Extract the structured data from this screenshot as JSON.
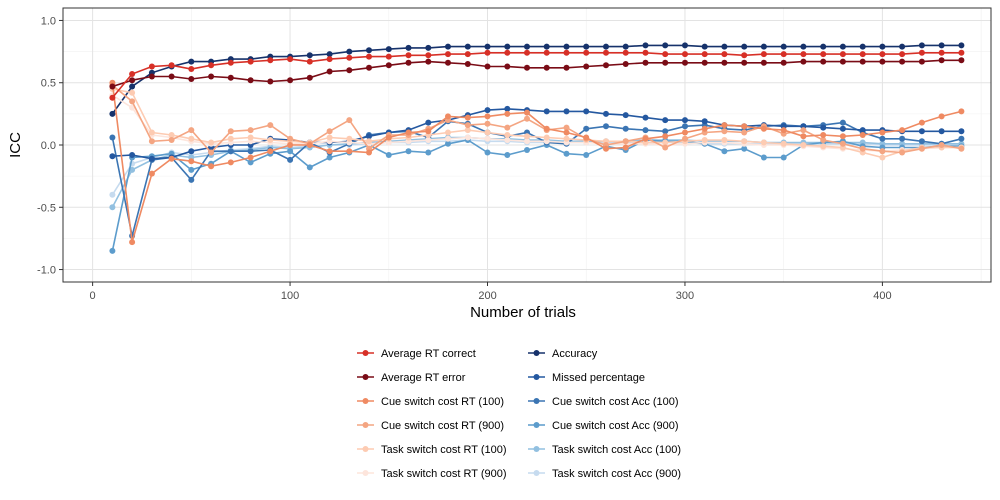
{
  "chart_data": {
    "type": "line",
    "xlabel": "Number of trials",
    "ylabel": "ICC",
    "xlim": [
      -15,
      455
    ],
    "ylim": [
      -1.1,
      1.1
    ],
    "xticks": [
      0,
      100,
      200,
      300,
      400
    ],
    "yticks": [
      -1.0,
      -0.5,
      0.0,
      0.5,
      1.0
    ],
    "xtick_labels": [
      "0",
      "100",
      "200",
      "300",
      "400"
    ],
    "ytick_labels": [
      "-1.0",
      "-0.5",
      "0.0",
      "0.5",
      "1.0"
    ],
    "grid": true,
    "legend_position": "bottom",
    "x": [
      10,
      20,
      30,
      40,
      50,
      60,
      70,
      80,
      90,
      100,
      110,
      120,
      130,
      140,
      150,
      160,
      170,
      180,
      190,
      200,
      210,
      220,
      230,
      240,
      250,
      260,
      270,
      280,
      290,
      300,
      310,
      320,
      330,
      340,
      350,
      360,
      370,
      380,
      390,
      400,
      410,
      420,
      430,
      440
    ],
    "series": [
      {
        "name": "Average RT correct",
        "color": "#d73027",
        "values": [
          0.38,
          0.57,
          0.63,
          0.64,
          0.61,
          0.64,
          0.66,
          0.67,
          0.68,
          0.69,
          0.67,
          0.69,
          0.7,
          0.71,
          0.71,
          0.72,
          0.72,
          0.73,
          0.73,
          0.74,
          0.74,
          0.74,
          0.74,
          0.74,
          0.74,
          0.74,
          0.74,
          0.74,
          0.73,
          0.73,
          0.73,
          0.73,
          0.72,
          0.73,
          0.73,
          0.73,
          0.73,
          0.73,
          0.73,
          0.73,
          0.73,
          0.74,
          0.74,
          0.74
        ]
      },
      {
        "name": "Average RT error",
        "color": "#7a0c16",
        "values": [
          0.47,
          0.52,
          0.55,
          0.55,
          0.53,
          0.55,
          0.54,
          0.52,
          0.51,
          0.52,
          0.54,
          0.59,
          0.6,
          0.62,
          0.64,
          0.66,
          0.67,
          0.66,
          0.65,
          0.63,
          0.63,
          0.62,
          0.62,
          0.62,
          0.63,
          0.64,
          0.65,
          0.66,
          0.66,
          0.66,
          0.66,
          0.66,
          0.66,
          0.66,
          0.66,
          0.67,
          0.67,
          0.67,
          0.67,
          0.67,
          0.67,
          0.67,
          0.68,
          0.68
        ]
      },
      {
        "name": "Cue switch cost RT (100)",
        "color": "#ef8a62",
        "values": [
          0.5,
          -0.78,
          -0.23,
          -0.11,
          -0.13,
          -0.17,
          -0.14,
          -0.1,
          -0.05,
          0.0,
          0.0,
          -0.05,
          -0.05,
          -0.06,
          0.06,
          0.1,
          0.11,
          0.23,
          0.22,
          0.23,
          0.25,
          0.26,
          0.13,
          0.1,
          0.06,
          -0.03,
          -0.02,
          0.05,
          0.07,
          0.1,
          0.13,
          0.16,
          0.15,
          0.13,
          0.12,
          0.07,
          0.08,
          0.07,
          0.08,
          0.1,
          0.12,
          0.18,
          0.23,
          0.27
        ]
      },
      {
        "name": "Cue switch cost RT (900)",
        "color": "#f4a582",
        "values": [
          0.48,
          0.35,
          0.03,
          0.04,
          0.12,
          -0.06,
          0.11,
          0.12,
          0.16,
          0.05,
          0.01,
          0.11,
          0.2,
          -0.03,
          0.08,
          0.08,
          0.13,
          0.2,
          0.16,
          0.17,
          0.14,
          0.21,
          0.12,
          0.14,
          0.05,
          0.0,
          0.03,
          0.06,
          -0.02,
          0.05,
          0.1,
          0.11,
          0.1,
          0.15,
          0.09,
          0.12,
          0.04,
          0.01,
          -0.03,
          -0.05,
          -0.06,
          -0.03,
          0.0,
          -0.03
        ]
      },
      {
        "name": "Task switch cost RT (100)",
        "color": "#fdcbb2",
        "values": [
          0.45,
          0.42,
          0.1,
          0.08,
          0.05,
          0.02,
          0.05,
          0.06,
          0.04,
          0.03,
          0.02,
          0.06,
          0.05,
          0.03,
          0.05,
          0.06,
          0.08,
          0.1,
          0.12,
          0.1,
          0.08,
          0.07,
          0.06,
          0.05,
          0.04,
          0.03,
          0.03,
          0.02,
          0.02,
          0.03,
          0.04,
          0.04,
          0.03,
          0.02,
          0.01,
          0.0,
          -0.01,
          -0.02,
          -0.06,
          -0.1,
          -0.05,
          -0.02,
          -0.02,
          -0.02
        ]
      },
      {
        "name": "Task switch cost RT (900)",
        "color": "#fde5dc",
        "values": [
          0.4,
          0.3,
          0.08,
          0.06,
          0.03,
          0.01,
          0.02,
          0.03,
          0.02,
          0.01,
          0.01,
          0.03,
          0.02,
          0.01,
          0.02,
          0.03,
          0.04,
          0.05,
          0.06,
          0.05,
          0.04,
          0.03,
          0.03,
          0.02,
          0.02,
          0.01,
          0.01,
          0.01,
          0.0,
          0.01,
          0.02,
          0.02,
          0.01,
          0.0,
          0.0,
          -0.01,
          -0.02,
          -0.03,
          -0.04,
          -0.05,
          -0.04,
          -0.03,
          -0.02,
          -0.02
        ]
      },
      {
        "name": "Accuracy",
        "color": "#16326b",
        "values": [
          0.25,
          0.47,
          0.58,
          0.63,
          0.67,
          0.67,
          0.69,
          0.69,
          0.71,
          0.71,
          0.72,
          0.73,
          0.75,
          0.76,
          0.77,
          0.78,
          0.78,
          0.79,
          0.79,
          0.79,
          0.79,
          0.79,
          0.79,
          0.79,
          0.79,
          0.79,
          0.79,
          0.8,
          0.8,
          0.8,
          0.79,
          0.79,
          0.79,
          0.79,
          0.79,
          0.79,
          0.79,
          0.79,
          0.79,
          0.79,
          0.79,
          0.8,
          0.8,
          0.8
        ]
      },
      {
        "name": "Missed percentage",
        "color": "#2458a0",
        "values": [
          -0.09,
          -0.08,
          -0.11,
          -0.1,
          -0.05,
          -0.02,
          0.0,
          0.0,
          0.05,
          0.04,
          0.02,
          0.02,
          0.03,
          0.07,
          0.1,
          0.12,
          0.18,
          0.2,
          0.24,
          0.28,
          0.29,
          0.28,
          0.27,
          0.27,
          0.27,
          0.25,
          0.24,
          0.22,
          0.2,
          0.2,
          0.19,
          0.16,
          0.15,
          0.16,
          0.15,
          0.15,
          0.14,
          0.13,
          0.12,
          0.12,
          0.11,
          0.11,
          0.11,
          0.11
        ]
      },
      {
        "name": "Cue switch cost Acc (100)",
        "color": "#3b75b3",
        "values": [
          0.06,
          -0.73,
          -0.12,
          -0.1,
          -0.28,
          -0.05,
          -0.05,
          -0.05,
          -0.04,
          -0.12,
          0.02,
          -0.06,
          0.01,
          0.08,
          0.1,
          0.11,
          0.06,
          0.19,
          0.17,
          0.1,
          0.07,
          0.1,
          0.02,
          0.01,
          0.13,
          0.15,
          0.13,
          0.12,
          0.11,
          0.15,
          0.16,
          0.13,
          0.12,
          0.15,
          0.16,
          0.15,
          0.16,
          0.18,
          0.1,
          0.05,
          0.05,
          0.03,
          0.01,
          0.05
        ]
      },
      {
        "name": "Cue switch cost Acc (900)",
        "color": "#5c9ccc",
        "values": [
          -0.85,
          -0.1,
          -0.09,
          -0.07,
          -0.2,
          -0.15,
          -0.05,
          -0.14,
          -0.07,
          -0.05,
          -0.18,
          -0.1,
          -0.06,
          0.0,
          -0.08,
          -0.05,
          -0.06,
          0.01,
          0.04,
          -0.06,
          -0.08,
          -0.04,
          0.0,
          -0.07,
          -0.08,
          -0.01,
          -0.04,
          0.04,
          0.03,
          0.03,
          0.01,
          -0.05,
          -0.03,
          -0.1,
          -0.1,
          0.0,
          0.02,
          0.03,
          -0.01,
          -0.02,
          -0.02,
          -0.02,
          -0.01,
          -0.01
        ]
      },
      {
        "name": "Task switch cost Acc (100)",
        "color": "#92c0e0",
        "values": [
          -0.5,
          -0.2,
          -0.12,
          -0.08,
          -0.1,
          -0.08,
          -0.05,
          -0.04,
          -0.02,
          -0.03,
          -0.02,
          0.0,
          0.01,
          0.02,
          0.03,
          0.04,
          0.05,
          0.06,
          0.06,
          0.05,
          0.05,
          0.04,
          0.04,
          0.03,
          0.03,
          0.03,
          0.03,
          0.04,
          0.04,
          0.04,
          0.03,
          0.03,
          0.03,
          0.02,
          0.02,
          0.02,
          0.02,
          0.02,
          0.02,
          0.01,
          0.01,
          0.01,
          0.01,
          0.01
        ]
      },
      {
        "name": "Task switch cost Acc (900)",
        "color": "#c6dbef",
        "values": [
          -0.4,
          -0.15,
          -0.1,
          -0.06,
          -0.08,
          -0.06,
          -0.04,
          -0.03,
          -0.01,
          -0.02,
          -0.01,
          0.0,
          0.0,
          0.01,
          0.02,
          0.02,
          0.03,
          0.03,
          0.04,
          0.03,
          0.03,
          0.02,
          0.02,
          0.02,
          0.02,
          0.02,
          0.02,
          0.02,
          0.02,
          0.02,
          0.01,
          0.01,
          0.01,
          0.01,
          0.01,
          0.01,
          0.01,
          0.01,
          0.01,
          0.0,
          0.0,
          0.0,
          0.0,
          0.0
        ]
      }
    ]
  }
}
